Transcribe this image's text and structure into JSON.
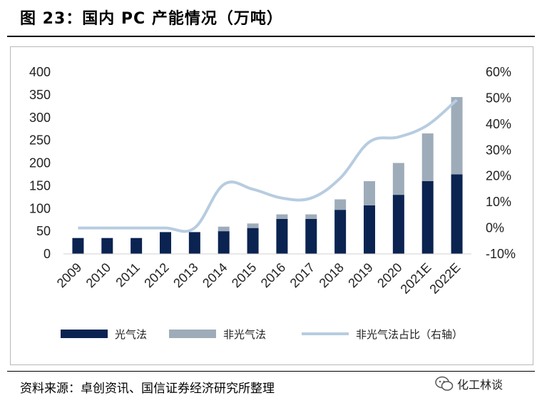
{
  "title": "图 23：国内 PC 产能情况（万吨）",
  "source": "资料来源：卓创资讯、国信证券经济研究所整理",
  "watermark": "化工林谈",
  "colors": {
    "photo": "#0a2351",
    "nonphoto": "#9eacba",
    "share": "#b7cce0"
  },
  "chart_data": {
    "type": "bar",
    "stacked": true,
    "categories": [
      "2009",
      "2010",
      "2011",
      "2012",
      "2013",
      "2014",
      "2015",
      "2016",
      "2017",
      "2018",
      "2019",
      "2020",
      "2021E",
      "2022E"
    ],
    "series": [
      {
        "name": "光气法",
        "type": "bar",
        "axis": "left",
        "values": [
          35,
          35,
          35,
          48,
          48,
          50,
          57,
          77,
          77,
          97,
          107,
          130,
          160,
          175
        ]
      },
      {
        "name": "非光气法",
        "type": "bar",
        "axis": "left",
        "values": [
          0,
          0,
          0,
          0,
          0,
          10,
          10,
          10,
          10,
          23,
          53,
          70,
          105,
          170
        ]
      },
      {
        "name": "非光气法占比（右轴）",
        "type": "line",
        "axis": "right",
        "values": [
          0,
          0,
          0,
          0,
          0,
          16.7,
          14.9,
          11.5,
          11.5,
          19.2,
          33.1,
          35.0,
          39.6,
          49.3
        ]
      }
    ],
    "ylim_left": [
      0,
      400
    ],
    "yticks_left": [
      "400",
      "350",
      "300",
      "250",
      "200",
      "150",
      "100",
      "50",
      "0"
    ],
    "ylim_right": [
      -10,
      60
    ],
    "yticks_right": [
      "60%",
      "50%",
      "40%",
      "30%",
      "20%",
      "10%",
      "0%",
      "-10%"
    ],
    "legend": "bottom",
    "grid": false
  }
}
